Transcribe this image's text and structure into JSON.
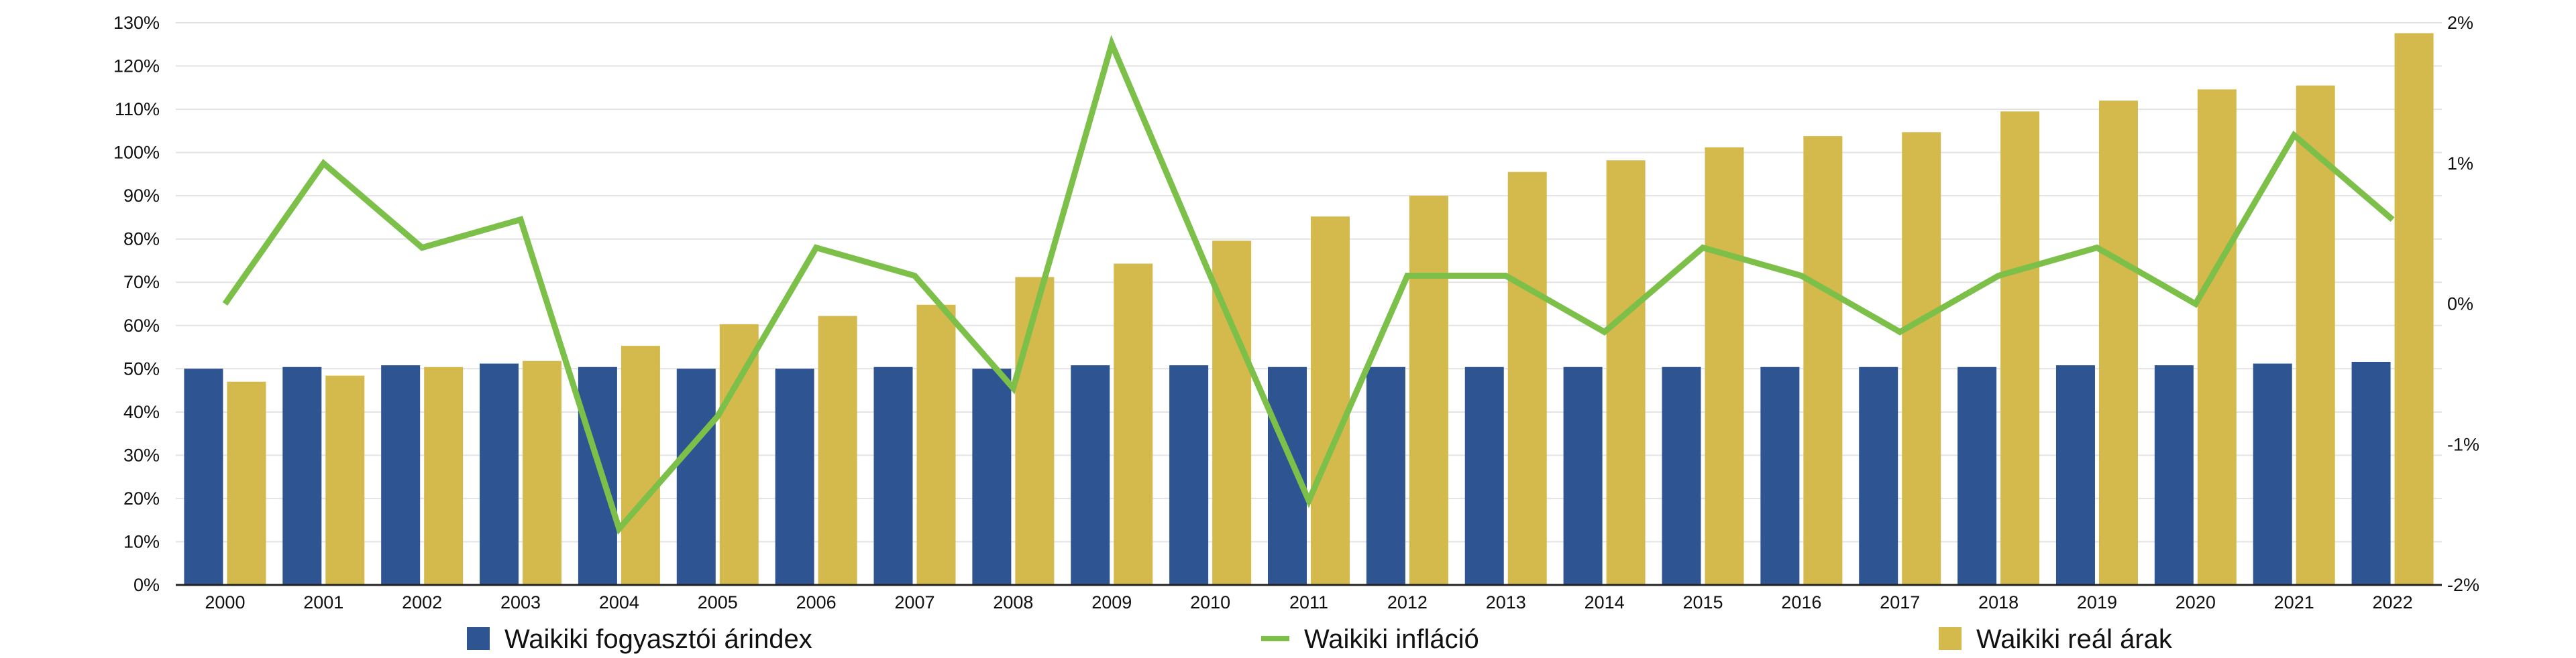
{
  "chart_data": {
    "type": "bar",
    "categories": [
      "2000",
      "2001",
      "2002",
      "2003",
      "2004",
      "2005",
      "2006",
      "2007",
      "2008",
      "2009",
      "2010",
      "2011",
      "2012",
      "2013",
      "2014",
      "2015",
      "2016",
      "2017",
      "2018",
      "2019",
      "2020",
      "2021",
      "2022"
    ],
    "y_left": {
      "ticks": [
        "0%",
        "10%",
        "20%",
        "30%",
        "40%",
        "50%",
        "60%",
        "70%",
        "80%",
        "90%",
        "100%",
        "110%",
        "120%",
        "130%"
      ],
      "range": [
        0,
        130
      ]
    },
    "y_right": {
      "ticks": [
        "2%",
        "1%",
        "0%",
        "-1%",
        "-2%"
      ],
      "range": [
        -2,
        2
      ]
    },
    "series": [
      {
        "name": "Waikiki fogyasztói árindex",
        "type": "bar",
        "axis": "left",
        "color": "#2e5591",
        "values": [
          50,
          50.4,
          50.8,
          51.2,
          50.4,
          50,
          50,
          50.4,
          50,
          50.8,
          50.8,
          50.4,
          50.4,
          50.4,
          50.4,
          50.4,
          50.4,
          50.4,
          50.4,
          50.8,
          50.8,
          51.2,
          51.6
        ]
      },
      {
        "name": "Waikiki infláció",
        "type": "line",
        "axis": "right",
        "color": "#7cc04a",
        "values": [
          0,
          1,
          0.4,
          0.6,
          -1.6,
          -0.8,
          0.4,
          0.2,
          -0.6,
          1.85,
          0.2,
          -1.4,
          0.2,
          0.2,
          -0.2,
          0.4,
          0.2,
          -0.2,
          0.2,
          0.4,
          0,
          1.2,
          0.6
        ]
      },
      {
        "name": "Waikiki reál árak",
        "type": "bar",
        "axis": "left",
        "color": "#d4b94c",
        "values": [
          47,
          48.4,
          50.4,
          51.8,
          55.3,
          60.3,
          62.2,
          64.8,
          71.2,
          74.3,
          79.6,
          85.2,
          90,
          95.5,
          98.2,
          101.2,
          103.8,
          104.7,
          109.5,
          112,
          114.6,
          115.5,
          127.6
        ]
      }
    ],
    "grid": true,
    "legend_position": "bottom"
  }
}
